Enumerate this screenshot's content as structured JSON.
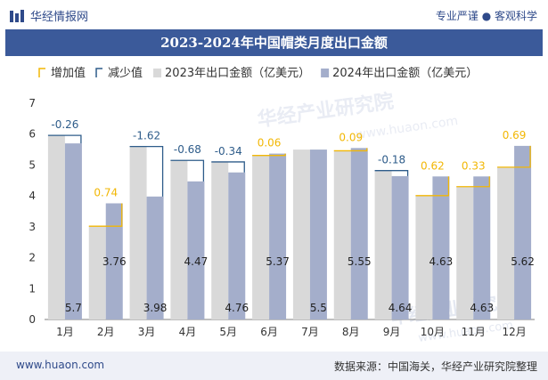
{
  "header": {
    "brand": "华经情报网",
    "slogan": "专业严谨 ● 客观科学"
  },
  "title": "2023-2024年中国帽类月度出口金额",
  "watermarks": [
    "华经产业研究院",
    "www.huaon.com"
  ],
  "footer": {
    "url": "www.huaon.com",
    "source": "数据来源：中国海关，华经产业研究院整理"
  },
  "colors": {
    "bar2023": "#d9d9d9",
    "bar2024": "#a4aecb",
    "increase": "#f2b705",
    "decrease": "#2e5c8a",
    "title_bg": "#3b5a9a"
  },
  "chart_data": {
    "type": "bar",
    "title": "2023-2024年中国帽类月度出口金额",
    "categories": [
      "1月",
      "2月",
      "3月",
      "4月",
      "5月",
      "6月",
      "7月",
      "8月",
      "9月",
      "10月",
      "11月",
      "12月"
    ],
    "series": [
      {
        "name": "2023年出口金额（亿美元）",
        "values": [
          5.96,
          3.02,
          5.6,
          5.15,
          5.1,
          5.31,
          5.5,
          5.46,
          4.82,
          4.01,
          4.3,
          4.93
        ]
      },
      {
        "name": "2024年出口金额（亿美元）",
        "values": [
          5.7,
          3.76,
          3.98,
          4.47,
          4.76,
          5.37,
          5.5,
          5.55,
          4.64,
          4.63,
          4.63,
          5.62
        ]
      }
    ],
    "change": [
      -0.26,
      0.74,
      -1.62,
      -0.68,
      -0.34,
      0.06,
      null,
      0.09,
      -0.18,
      0.62,
      0.33,
      0.69
    ],
    "change_labels": [
      "-0.26",
      "0.74",
      "-1.62",
      "-0.68",
      "-0.34",
      "0.06",
      "",
      "0.09",
      "-0.18",
      "0.62",
      "0.33",
      "0.69"
    ],
    "value_labels_2024": [
      "5.7",
      "3.76",
      "3.98",
      "4.47",
      "4.76",
      "5.37",
      "5.5",
      "5.55",
      "4.64",
      "4.63",
      "4.63",
      "5.62"
    ],
    "legend": [
      "增加值",
      "减少值",
      "2023年出口金额（亿美元）",
      "2024年出口金额（亿美元）"
    ],
    "yticks": [
      "0",
      "1",
      "2",
      "3",
      "4",
      "5",
      "6",
      "7"
    ],
    "ylim": [
      0,
      7
    ],
    "legend_position": "top-left",
    "grid": false
  }
}
